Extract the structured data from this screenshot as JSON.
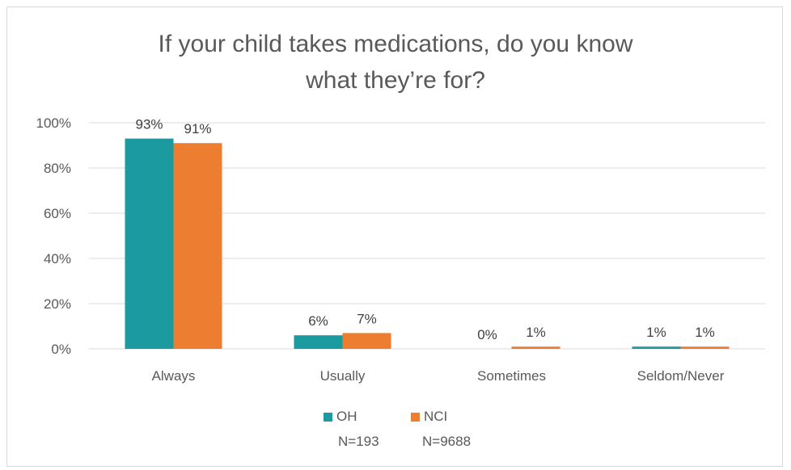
{
  "chart_data": {
    "type": "bar",
    "title_lines": [
      "If your child takes medications, do you know",
      "what they’re for?"
    ],
    "categories": [
      "Always",
      "Usually",
      "Sometimes",
      "Seldom/Never"
    ],
    "series": [
      {
        "name": "OH",
        "note": "N=193",
        "color": "#1b9aa0",
        "values": [
          93,
          6,
          0,
          1
        ],
        "labels": [
          "93%",
          "6%",
          "0%",
          "1%"
        ]
      },
      {
        "name": "NCI",
        "note": "N=9688",
        "color": "#ed7d31",
        "values": [
          91,
          7,
          1,
          1
        ],
        "labels": [
          "91%",
          "7%",
          "1%",
          "1%"
        ]
      }
    ],
    "y_ticks": [
      "0%",
      "20%",
      "40%",
      "60%",
      "80%",
      "100%"
    ],
    "ylim": [
      0,
      100
    ],
    "grid": true,
    "legend_position": "bottom"
  }
}
